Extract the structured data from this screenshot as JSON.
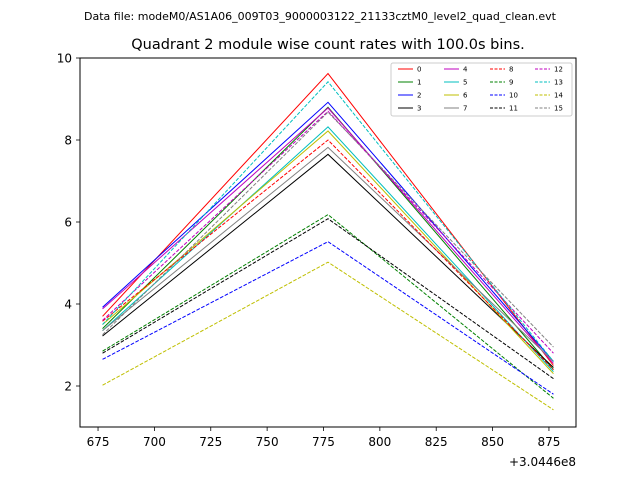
{
  "suptitle": "Data file: modeM0/AS1A06_009T03_9000003122_21133cztM0_level2_quad_clean.evt",
  "chart_data": {
    "type": "line",
    "title": "Quadrant 2 module wise count rates with 100.0s bins.",
    "xlabel": "",
    "ylabel": "",
    "x_offset_label": "+3.0446e8",
    "x": [
      677,
      777,
      877
    ],
    "xlim": [
      667,
      887
    ],
    "ylim": [
      1,
      10
    ],
    "xticks": [
      675,
      700,
      725,
      750,
      775,
      800,
      825,
      850,
      875
    ],
    "yticks": [
      2,
      4,
      6,
      8,
      10
    ],
    "grid": false,
    "legend_location": "top-right",
    "series": [
      {
        "name": "0",
        "color": "#ff0000",
        "style": "solid",
        "values": [
          3.7,
          9.62,
          2.5
        ]
      },
      {
        "name": "1",
        "color": "#008000",
        "style": "solid",
        "values": [
          3.4,
          8.8,
          2.4
        ]
      },
      {
        "name": "2",
        "color": "#0000ff",
        "style": "solid",
        "values": [
          3.92,
          8.92,
          2.6
        ]
      },
      {
        "name": "3",
        "color": "#000000",
        "style": "solid",
        "values": [
          3.22,
          7.65,
          2.45
        ]
      },
      {
        "name": "4",
        "color": "#bf00bf",
        "style": "solid",
        "values": [
          3.88,
          8.78,
          2.55
        ]
      },
      {
        "name": "5",
        "color": "#00bfbf",
        "style": "solid",
        "values": [
          3.35,
          8.32,
          2.35
        ]
      },
      {
        "name": "6",
        "color": "#bfbf00",
        "style": "solid",
        "values": [
          3.5,
          8.22,
          2.3
        ]
      },
      {
        "name": "7",
        "color": "#808080",
        "style": "solid",
        "values": [
          3.35,
          7.82,
          2.6
        ]
      },
      {
        "name": "8",
        "color": "#ff0000",
        "style": "dashed",
        "values": [
          3.58,
          8.0,
          2.4
        ]
      },
      {
        "name": "9",
        "color": "#008000",
        "style": "dashed",
        "values": [
          2.85,
          6.18,
          1.7
        ]
      },
      {
        "name": "10",
        "color": "#0000ff",
        "style": "dashed",
        "values": [
          2.65,
          5.52,
          1.8
        ]
      },
      {
        "name": "11",
        "color": "#000000",
        "style": "dashed",
        "values": [
          2.8,
          6.08,
          2.18
        ]
      },
      {
        "name": "12",
        "color": "#bf00bf",
        "style": "dashed",
        "values": [
          3.6,
          8.7,
          2.8
        ]
      },
      {
        "name": "13",
        "color": "#00bfbf",
        "style": "dashed",
        "values": [
          3.5,
          9.42,
          2.6
        ]
      },
      {
        "name": "14",
        "color": "#bfbf00",
        "style": "dashed",
        "values": [
          2.02,
          5.02,
          1.42
        ]
      },
      {
        "name": "15",
        "color": "#808080",
        "style": "dashed",
        "values": [
          3.25,
          8.68,
          2.95
        ]
      }
    ]
  }
}
